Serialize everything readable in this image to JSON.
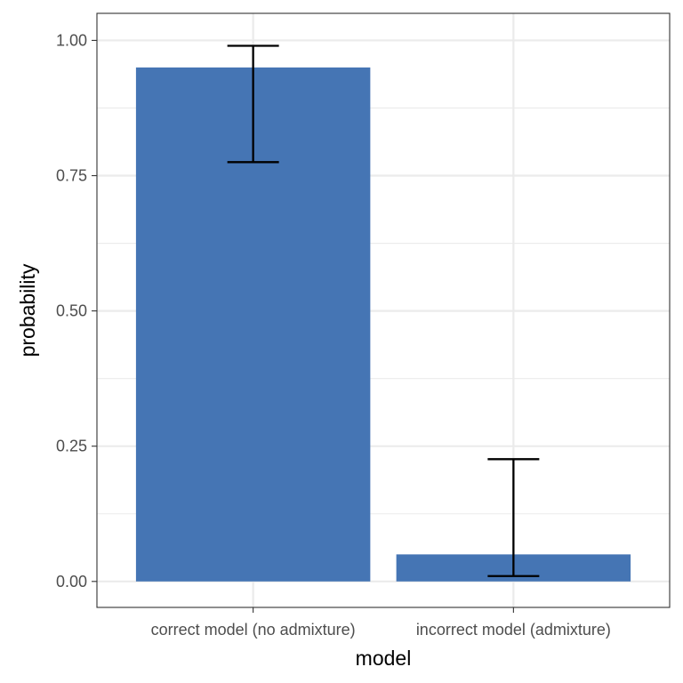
{
  "chart_data": {
    "type": "bar",
    "title": "",
    "xlabel": "model",
    "ylabel": "probability",
    "categories": [
      "correct model (no admixture)",
      "incorrect model (admixture)"
    ],
    "values": [
      0.95,
      0.05
    ],
    "error_low": [
      0.775,
      0.01
    ],
    "error_high": [
      0.99,
      0.226
    ],
    "ylim": [
      -0.048,
      1.05
    ],
    "yticks": [
      0.0,
      0.25,
      0.5,
      0.75,
      1.0
    ],
    "ytick_labels": [
      "0.00",
      "0.25",
      "0.50",
      "0.75",
      "1.00"
    ],
    "grid": true,
    "legend": "none",
    "colors": {
      "bar": "#4575b4",
      "error_bar": "#000000",
      "grid": "#ebebeb",
      "panel_border": "#333333"
    }
  }
}
